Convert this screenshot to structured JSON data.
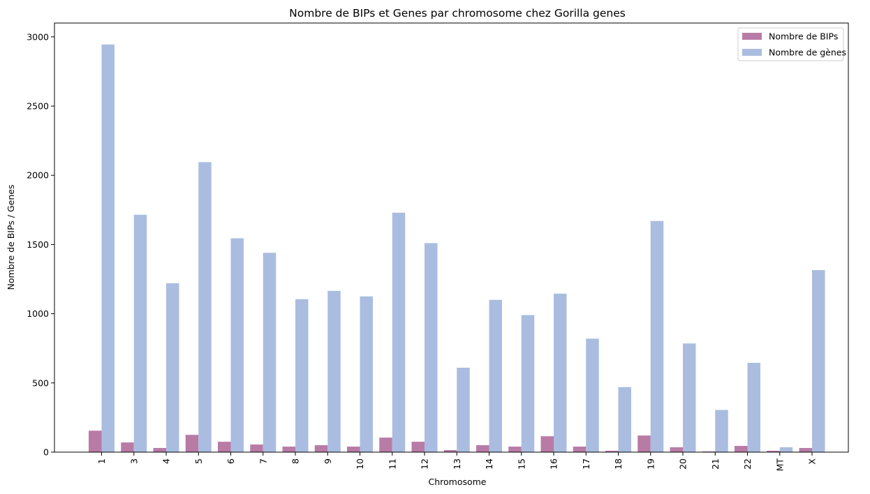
{
  "chart_data": {
    "type": "bar",
    "title": "Nombre de BIPs et Genes par chromosome chez Gorilla genes",
    "xlabel": "Chromosome",
    "ylabel": "Nombre de BIPs / Genes",
    "categories": [
      "1",
      "3",
      "4",
      "5",
      "6",
      "7",
      "8",
      "9",
      "10",
      "11",
      "12",
      "13",
      "14",
      "15",
      "16",
      "17",
      "18",
      "19",
      "20",
      "21",
      "22",
      "MT",
      "X"
    ],
    "series": [
      {
        "name": "Nombre de BIPs",
        "color": "#b87ba6",
        "values": [
          155,
          70,
          30,
          125,
          75,
          55,
          40,
          50,
          40,
          105,
          75,
          15,
          50,
          40,
          115,
          40,
          10,
          120,
          35,
          5,
          45,
          10,
          30
        ]
      },
      {
        "name": "Nombre de gènes",
        "color": "#aabde0",
        "values": [
          2945,
          1715,
          1220,
          2095,
          1545,
          1440,
          1105,
          1165,
          1125,
          1730,
          1510,
          610,
          1100,
          990,
          1145,
          820,
          470,
          1670,
          785,
          305,
          645,
          35,
          1315
        ]
      }
    ],
    "ylim": [
      0,
      3100
    ],
    "yticks": [
      0,
      500,
      1000,
      1500,
      2000,
      2500,
      3000
    ],
    "grid": false,
    "legend_position": "top-right"
  }
}
